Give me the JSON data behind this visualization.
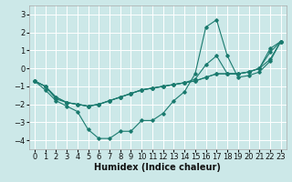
{
  "xlabel": "Humidex (Indice chaleur)",
  "background_color": "#cce8e8",
  "grid_color": "#ffffff",
  "line_color": "#1a7a6e",
  "x_values": [
    0,
    1,
    2,
    3,
    4,
    5,
    6,
    7,
    8,
    9,
    10,
    11,
    12,
    13,
    14,
    15,
    16,
    17,
    18,
    19,
    20,
    21,
    22,
    23
  ],
  "series": [
    [
      -0.7,
      -1.2,
      -1.8,
      -2.1,
      -2.4,
      -3.4,
      -3.9,
      -3.9,
      -3.5,
      -3.5,
      -2.9,
      -2.9,
      -2.5,
      -1.8,
      -1.3,
      -0.3,
      2.3,
      2.7,
      0.7,
      -0.5,
      -0.4,
      -0.2,
      0.4,
      1.5
    ],
    [
      -0.7,
      -1.0,
      -1.6,
      -1.9,
      -2.0,
      -2.1,
      -2.0,
      -1.8,
      -1.6,
      -1.4,
      -1.2,
      -1.1,
      -1.0,
      -0.9,
      -0.8,
      -0.7,
      -0.5,
      -0.3,
      -0.3,
      -0.3,
      -0.2,
      0.0,
      0.5,
      1.5
    ],
    [
      -0.7,
      -1.0,
      -1.6,
      -1.9,
      -2.0,
      -2.1,
      -2.0,
      -1.8,
      -1.6,
      -1.4,
      -1.2,
      -1.1,
      -1.0,
      -0.9,
      -0.8,
      -0.7,
      -0.5,
      -0.3,
      -0.3,
      -0.3,
      -0.2,
      0.0,
      1.1,
      1.5
    ],
    [
      -0.7,
      -1.0,
      -1.7,
      -1.9,
      -2.0,
      -2.1,
      -2.0,
      -1.8,
      -1.6,
      -1.4,
      -1.2,
      -1.1,
      -1.0,
      -0.9,
      -0.8,
      -0.6,
      0.2,
      0.7,
      -0.3,
      -0.3,
      -0.2,
      0.0,
      0.9,
      1.5
    ]
  ],
  "ylim": [
    -4.5,
    3.5
  ],
  "xlim": [
    -0.5,
    23.5
  ],
  "yticks": [
    -4,
    -3,
    -2,
    -1,
    0,
    1,
    2,
    3
  ],
  "xticks": [
    0,
    1,
    2,
    3,
    4,
    5,
    6,
    7,
    8,
    9,
    10,
    11,
    12,
    13,
    14,
    15,
    16,
    17,
    18,
    19,
    20,
    21,
    22,
    23
  ],
  "tick_fontsize": 6,
  "xlabel_fontsize": 7
}
